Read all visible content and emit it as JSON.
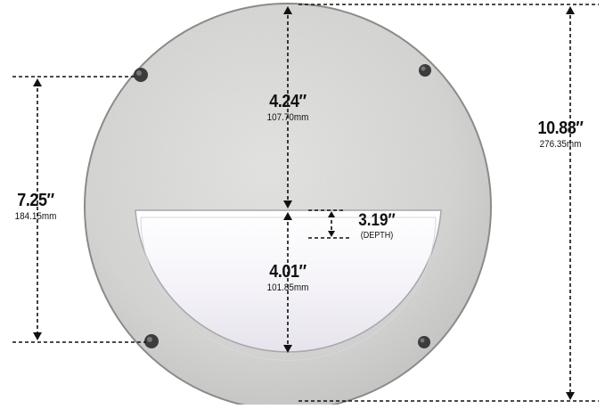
{
  "dimensions": {
    "top_section": {
      "inches": "4.24″",
      "mm": "107.70mm"
    },
    "lens_height": {
      "inches": "4.01″",
      "mm": "101.85mm"
    },
    "screw_spacing": {
      "inches": "7.25″",
      "mm": "184.15mm"
    },
    "overall_diameter": {
      "inches": "10.88″",
      "mm": "276.35mm"
    },
    "depth": {
      "inches": "3.19″",
      "note": "(DEPTH)"
    }
  },
  "colors": {
    "faceplate": "#d6d6d4",
    "faceplate_edge": "#8a8a88",
    "lens": "#f2f0f6",
    "screw": "#3c3c3c",
    "dimension_line": "#111111"
  }
}
